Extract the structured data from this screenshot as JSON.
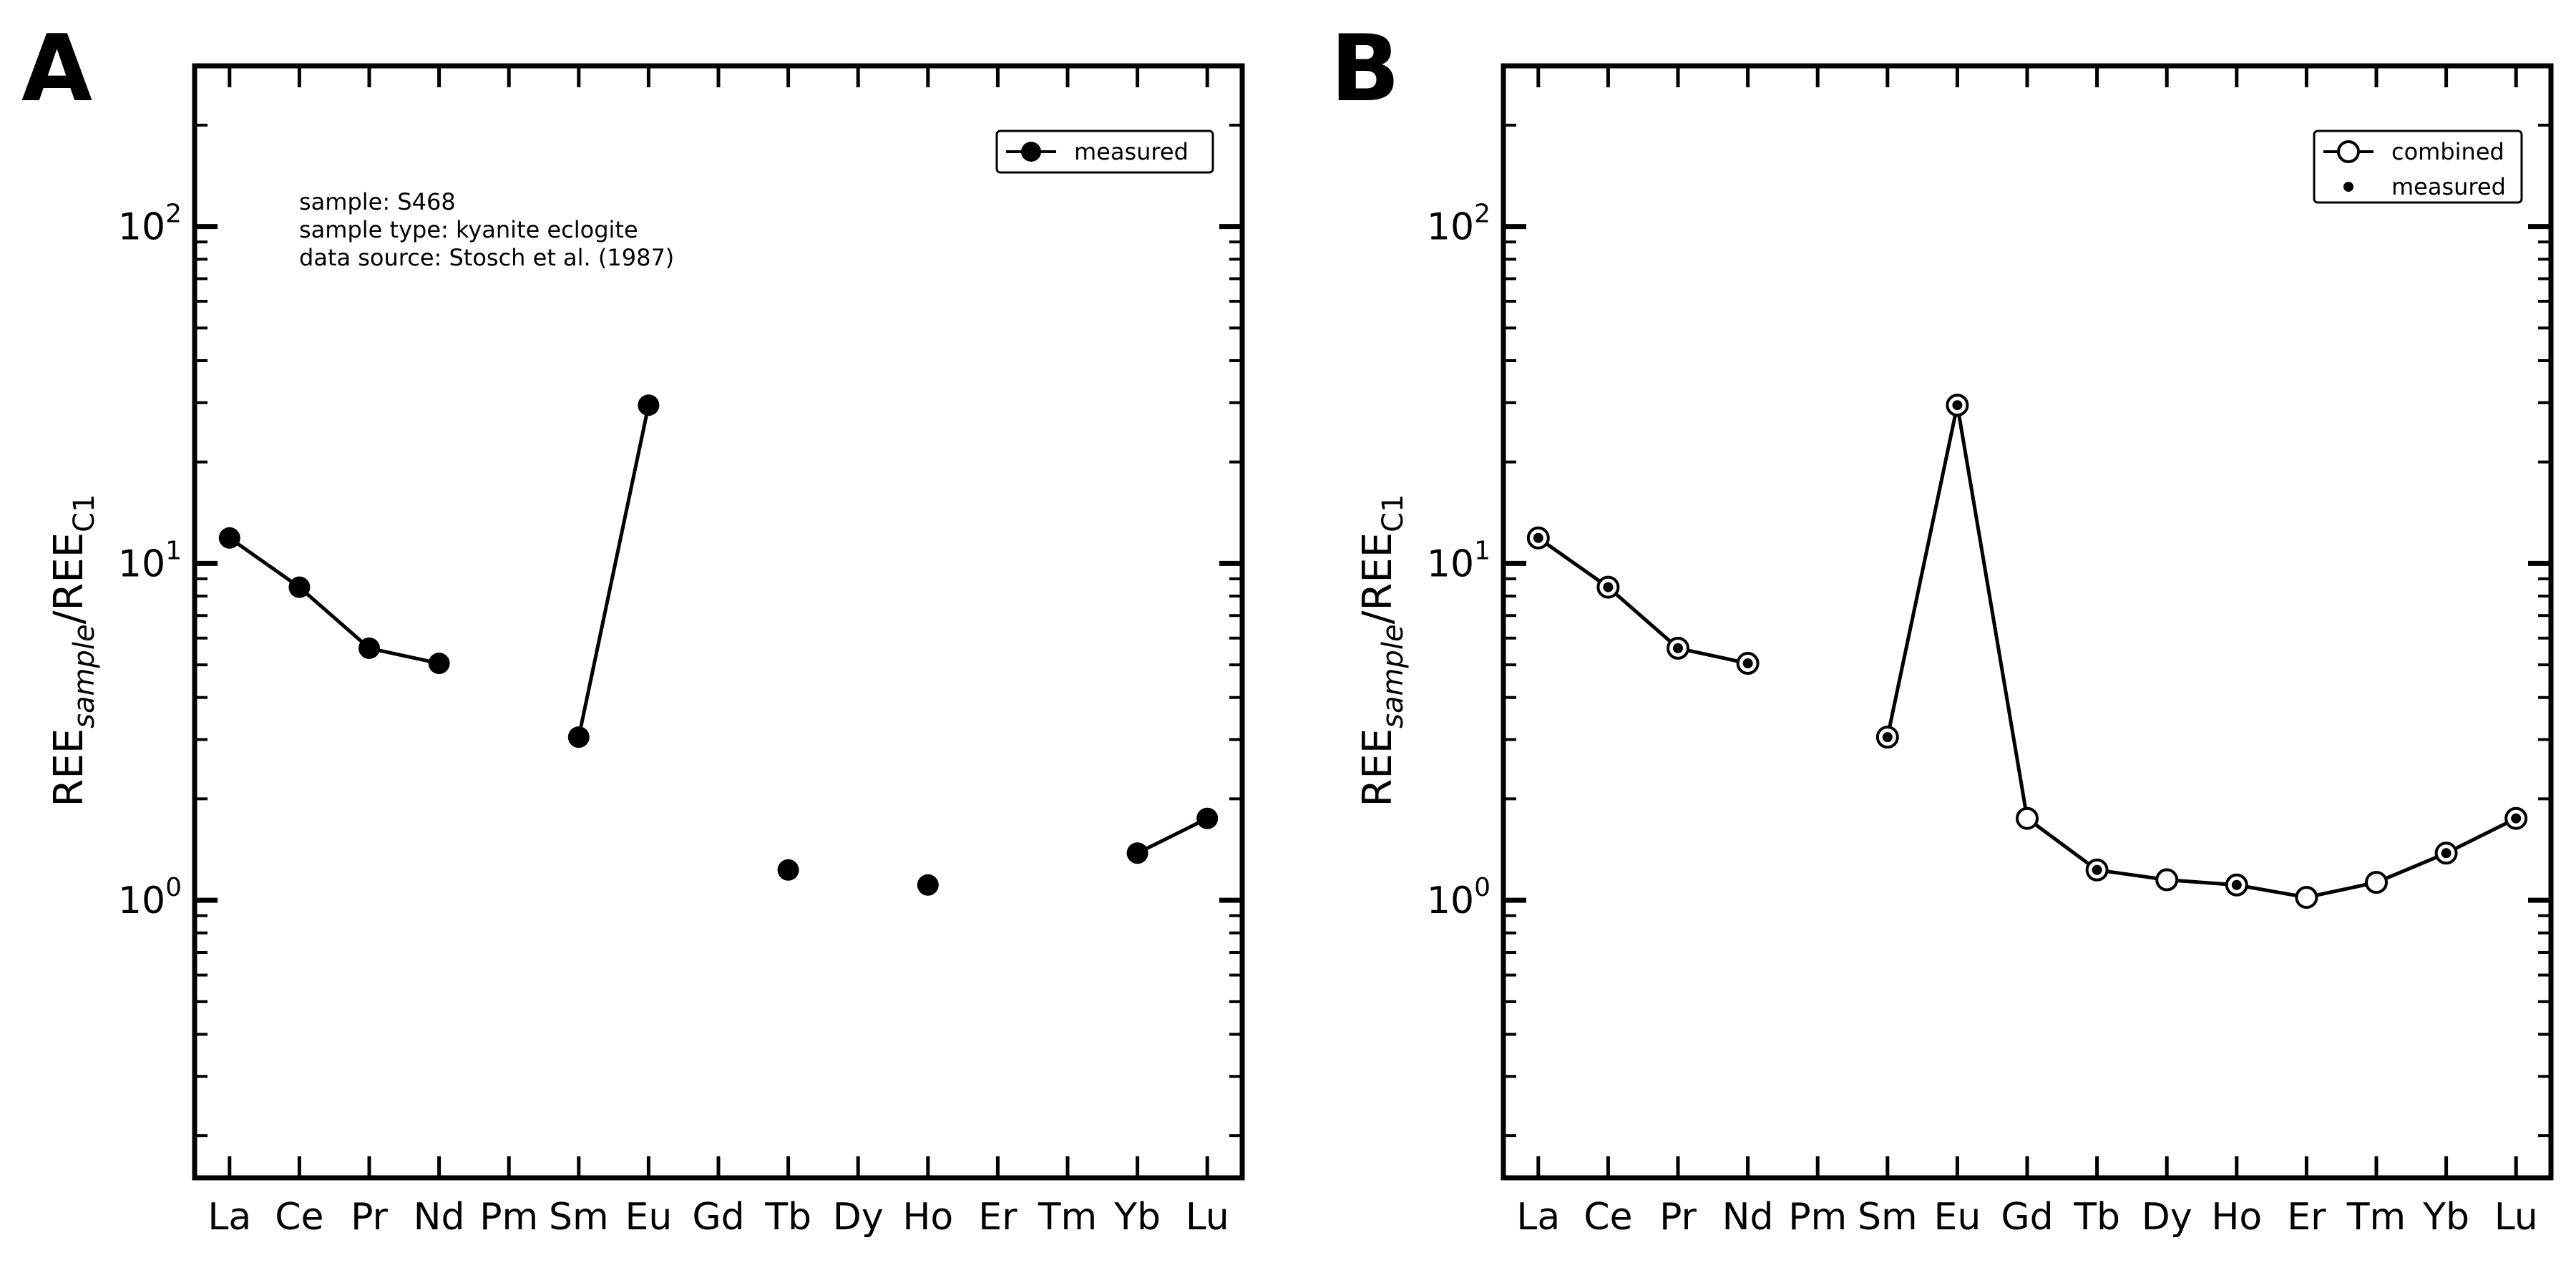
{
  "chart_data": [
    {
      "panel": "A",
      "type": "line",
      "yscale": "log",
      "ylim": [
        0.15,
        300
      ],
      "ylabel": {
        "main": "REE",
        "sub1": "sample",
        "sep": "/REE",
        "sub2": "C1"
      },
      "ytick_labels": [
        {
          "value": 1,
          "base": "10",
          "exp": "0"
        },
        {
          "value": 10,
          "base": "10",
          "exp": "1"
        },
        {
          "value": 100,
          "base": "10",
          "exp": "2"
        }
      ],
      "categories": [
        "La",
        "Ce",
        "Pr",
        "Nd",
        "Pm",
        "Sm",
        "Eu",
        "Gd",
        "Tb",
        "Dy",
        "Ho",
        "Er",
        "Tm",
        "Yb",
        "Lu"
      ],
      "series": [
        {
          "name": "measured",
          "marker": "filled",
          "connected": true,
          "values": [
            11.9,
            8.5,
            5.6,
            5.05,
            null,
            3.05,
            29.5,
            null,
            1.23,
            null,
            1.11,
            null,
            null,
            1.38,
            1.75
          ]
        }
      ],
      "legend": {
        "position": "top-right",
        "entries": [
          "measured"
        ]
      },
      "annotations": [
        "sample: S468",
        "sample type: kyanite eclogite",
        "data source: Stosch et al. (1987)"
      ]
    },
    {
      "panel": "B",
      "type": "line",
      "yscale": "log",
      "ylim": [
        0.15,
        300
      ],
      "ylabel": {
        "main": "REE",
        "sub1": "sample",
        "sep": "/REE",
        "sub2": "C1"
      },
      "ytick_labels": [
        {
          "value": 1,
          "base": "10",
          "exp": "0"
        },
        {
          "value": 10,
          "base": "10",
          "exp": "1"
        },
        {
          "value": 100,
          "base": "10",
          "exp": "2"
        }
      ],
      "categories": [
        "La",
        "Ce",
        "Pr",
        "Nd",
        "Pm",
        "Sm",
        "Eu",
        "Gd",
        "Tb",
        "Dy",
        "Ho",
        "Er",
        "Tm",
        "Yb",
        "Lu"
      ],
      "series": [
        {
          "name": "combined",
          "marker": "open",
          "connected": true,
          "values": [
            11.9,
            8.5,
            5.6,
            5.05,
            null,
            3.05,
            29.5,
            1.75,
            1.23,
            1.15,
            1.11,
            1.02,
            1.13,
            1.38,
            1.75
          ]
        },
        {
          "name": "measured",
          "marker": "dot",
          "connected": false,
          "values": [
            11.9,
            8.5,
            5.6,
            5.05,
            null,
            3.05,
            29.5,
            null,
            1.23,
            null,
            1.11,
            null,
            null,
            1.38,
            1.75
          ]
        }
      ],
      "legend": {
        "position": "top-right",
        "entries": [
          "combined",
          "measured"
        ]
      },
      "annotations": []
    }
  ]
}
